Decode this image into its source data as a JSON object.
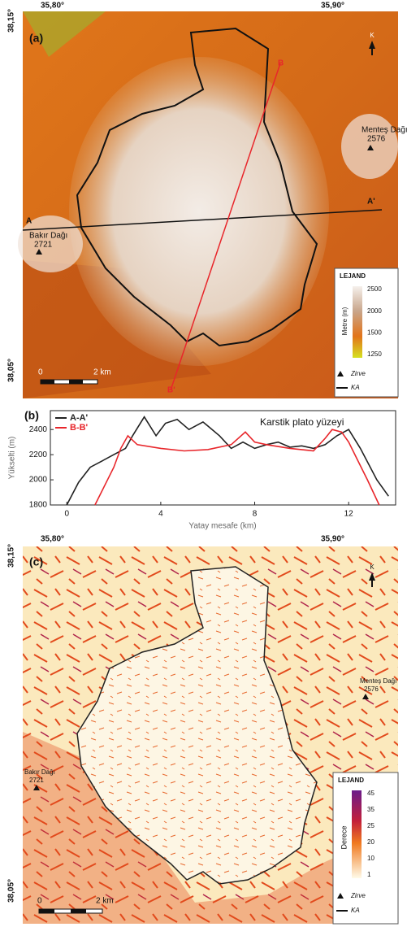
{
  "panel_a": {
    "label": "(a)",
    "lon_labels": [
      "35,80°",
      "35,90°"
    ],
    "lat_labels": [
      "38,15°",
      "38,05°"
    ],
    "profile_labels": [
      "A",
      "A'",
      "B",
      "B'"
    ],
    "peaks": [
      {
        "name": "Bakır Dağı",
        "elev": "2721"
      },
      {
        "name": "Menteş Dağı",
        "elev": "2576"
      }
    ],
    "scale": [
      "0",
      "2 km"
    ],
    "north": "K",
    "legend": {
      "title": "LEJAND",
      "axis_label": "Metre (m)",
      "ticks": [
        2500,
        2000,
        1500,
        1250
      ],
      "summit": "Zirve",
      "boundary": "KA"
    }
  },
  "chart_data": {
    "type": "line",
    "label": "(b)",
    "annotation": "Karstik plato yüzeyi",
    "x_label": "Yatay mesafe (km)",
    "y_label": "Yükselti (m)",
    "xlim": [
      -0.7,
      14
    ],
    "xticks": [
      0,
      4,
      8,
      12
    ],
    "ylim": [
      1800,
      2550
    ],
    "yticks": [
      1800,
      2000,
      2200,
      2400
    ],
    "series": [
      {
        "name": "A-A'",
        "color": "#222222",
        "x": [
          0,
          0.5,
          1,
          1.5,
          2,
          2.5,
          2.8,
          3.3,
          3.8,
          4.2,
          4.7,
          5.2,
          5.8,
          6.5,
          7,
          7.5,
          8,
          8.5,
          9,
          9.5,
          10,
          10.5,
          11,
          11.5,
          12,
          12.5,
          13.2,
          13.7
        ],
        "values": [
          1800,
          1980,
          2100,
          2150,
          2200,
          2250,
          2350,
          2500,
          2350,
          2450,
          2480,
          2400,
          2460,
          2350,
          2250,
          2300,
          2250,
          2280,
          2300,
          2260,
          2270,
          2250,
          2280,
          2350,
          2400,
          2250,
          2000,
          1870
        ]
      },
      {
        "name": "B-B'",
        "color": "#e8262b",
        "x": [
          1.2,
          1.6,
          2,
          2.3,
          2.6,
          3,
          4,
          5,
          6,
          7,
          7.6,
          8,
          8.5,
          9.5,
          10.5,
          11,
          11.3,
          11.7,
          12,
          12.4,
          12.8,
          13.3
        ],
        "values": [
          1800,
          1950,
          2100,
          2250,
          2350,
          2280,
          2250,
          2230,
          2240,
          2280,
          2380,
          2300,
          2280,
          2250,
          2230,
          2330,
          2400,
          2380,
          2300,
          2150,
          2000,
          1800
        ]
      }
    ]
  },
  "panel_c": {
    "label": "(c)",
    "legend": {
      "title": "LEJAND",
      "axis_label": "Derece",
      "ticks": [
        45,
        35,
        25,
        20,
        10,
        1
      ]
    }
  }
}
